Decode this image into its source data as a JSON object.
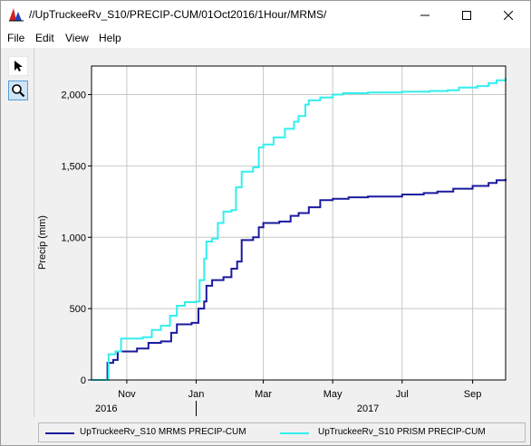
{
  "window": {
    "title": "//UpTruckeeRv_S10/PRECIP-CUM/01Oct2016/1Hour/MRMS/",
    "icon": "chart-app-icon"
  },
  "menu": {
    "file": "File",
    "edit": "Edit",
    "view": "View",
    "help": "Help"
  },
  "tools": {
    "pointer": "pointer-arrow-icon",
    "zoom": "magnifier-icon"
  },
  "colors": {
    "mrms": "#1a1a9e",
    "prism": "#33eeee"
  },
  "chart_data": {
    "type": "line",
    "ylabel": "Precip (mm)",
    "xlabel": "",
    "ylim": [
      0,
      2200
    ],
    "yticks": [
      0,
      500,
      1000,
      1500,
      2000
    ],
    "ytick_labels": [
      "0",
      "500",
      "1,000",
      "1,500",
      "2,000"
    ],
    "xlim": [
      "2016-10-01",
      "2017-09-30"
    ],
    "xticks": [
      {
        "date": "2016-11-01",
        "label": "Nov"
      },
      {
        "date": "2017-01-01",
        "label": "Jan"
      },
      {
        "date": "2017-03-01",
        "label": "Mar"
      },
      {
        "date": "2017-05-01",
        "label": "May"
      },
      {
        "date": "2017-07-01",
        "label": "Jul"
      },
      {
        "date": "2017-09-01",
        "label": "Sep"
      }
    ],
    "year_labels": [
      {
        "date": "2016-10-16",
        "label": "2016"
      },
      {
        "date": "2017-01-01",
        "label": "2017"
      }
    ],
    "grid": true,
    "legend_position": "bottom",
    "series": [
      {
        "name": "UpTruckeeRv_S10 MRMS PRECIP-CUM",
        "color": "#1a1a9e",
        "points": [
          [
            "2016-10-01",
            0
          ],
          [
            "2016-10-14",
            0
          ],
          [
            "2016-10-15",
            120
          ],
          [
            "2016-10-20",
            140
          ],
          [
            "2016-10-24",
            200
          ],
          [
            "2016-11-10",
            220
          ],
          [
            "2016-11-20",
            260
          ],
          [
            "2016-12-01",
            270
          ],
          [
            "2016-12-10",
            330
          ],
          [
            "2016-12-15",
            390
          ],
          [
            "2016-12-28",
            400
          ],
          [
            "2017-01-03",
            500
          ],
          [
            "2017-01-08",
            550
          ],
          [
            "2017-01-10",
            660
          ],
          [
            "2017-01-15",
            700
          ],
          [
            "2017-01-25",
            720
          ],
          [
            "2017-02-01",
            780
          ],
          [
            "2017-02-06",
            830
          ],
          [
            "2017-02-10",
            980
          ],
          [
            "2017-02-20",
            1000
          ],
          [
            "2017-02-25",
            1070
          ],
          [
            "2017-03-01",
            1100
          ],
          [
            "2017-03-15",
            1110
          ],
          [
            "2017-03-25",
            1150
          ],
          [
            "2017-04-01",
            1170
          ],
          [
            "2017-04-10",
            1210
          ],
          [
            "2017-04-20",
            1260
          ],
          [
            "2017-05-01",
            1270
          ],
          [
            "2017-05-15",
            1280
          ],
          [
            "2017-06-01",
            1285
          ],
          [
            "2017-07-01",
            1300
          ],
          [
            "2017-07-20",
            1310
          ],
          [
            "2017-08-01",
            1320
          ],
          [
            "2017-08-15",
            1340
          ],
          [
            "2017-09-01",
            1360
          ],
          [
            "2017-09-15",
            1380
          ],
          [
            "2017-09-22",
            1400
          ],
          [
            "2017-09-30",
            1410
          ]
        ]
      },
      {
        "name": "UpTruckeeRv_S10 PRISM PRECIP-CUM",
        "color": "#33eeee",
        "points": [
          [
            "2016-10-01",
            0
          ],
          [
            "2016-10-14",
            0
          ],
          [
            "2016-10-16",
            180
          ],
          [
            "2016-10-22",
            200
          ],
          [
            "2016-10-27",
            290
          ],
          [
            "2016-11-15",
            300
          ],
          [
            "2016-11-23",
            350
          ],
          [
            "2016-12-01",
            380
          ],
          [
            "2016-12-09",
            450
          ],
          [
            "2016-12-15",
            520
          ],
          [
            "2016-12-22",
            545
          ],
          [
            "2017-01-01",
            550
          ],
          [
            "2017-01-04",
            700
          ],
          [
            "2017-01-08",
            850
          ],
          [
            "2017-01-10",
            970
          ],
          [
            "2017-01-15",
            990
          ],
          [
            "2017-01-20",
            1100
          ],
          [
            "2017-01-25",
            1180
          ],
          [
            "2017-02-01",
            1190
          ],
          [
            "2017-02-05",
            1350
          ],
          [
            "2017-02-10",
            1460
          ],
          [
            "2017-02-20",
            1490
          ],
          [
            "2017-02-25",
            1630
          ],
          [
            "2017-03-01",
            1650
          ],
          [
            "2017-03-10",
            1700
          ],
          [
            "2017-03-20",
            1760
          ],
          [
            "2017-03-28",
            1810
          ],
          [
            "2017-04-01",
            1850
          ],
          [
            "2017-04-07",
            1930
          ],
          [
            "2017-04-10",
            1960
          ],
          [
            "2017-04-20",
            1980
          ],
          [
            "2017-05-01",
            2000
          ],
          [
            "2017-05-10",
            2010
          ],
          [
            "2017-06-01",
            2015
          ],
          [
            "2017-07-01",
            2020
          ],
          [
            "2017-07-25",
            2025
          ],
          [
            "2017-08-10",
            2030
          ],
          [
            "2017-08-20",
            2050
          ],
          [
            "2017-09-05",
            2060
          ],
          [
            "2017-09-15",
            2080
          ],
          [
            "2017-09-22",
            2100
          ],
          [
            "2017-09-30",
            2120
          ]
        ]
      }
    ]
  }
}
